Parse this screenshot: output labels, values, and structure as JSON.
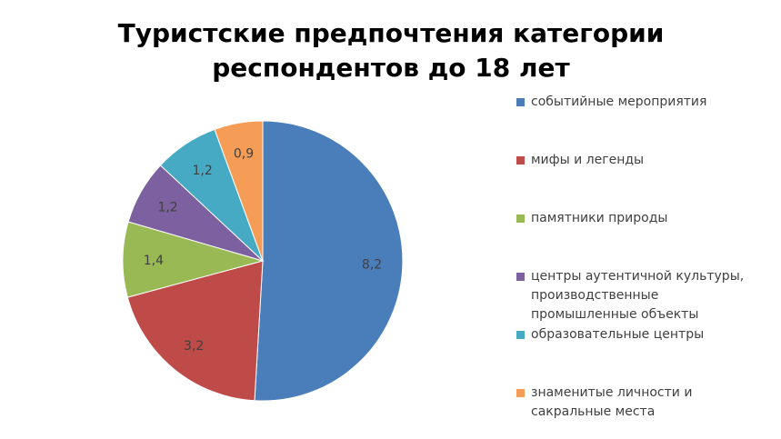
{
  "chart_data": {
    "type": "pie",
    "title": "Туристские  предпочтения  категории\nреспондентов до 18 лет",
    "categories": [
      "событийные мероприятия",
      "мифы и легенды",
      "памятники природы",
      "центры аутентичной культуры, производственные промышленные объекты",
      "образовательные центры",
      "знаменитые личности и сакральные места"
    ],
    "values": [
      8.2,
      3.2,
      1.4,
      1.2,
      1.2,
      0.9
    ],
    "data_labels": [
      "8,2",
      "3,2",
      "1,4",
      "1,2",
      "1,2",
      "0,9"
    ],
    "colors": [
      "#4A7EBB",
      "#BE4B48",
      "#98B954",
      "#7D60A0",
      "#46AAC5",
      "#F59D56"
    ],
    "legend_position": "right"
  }
}
